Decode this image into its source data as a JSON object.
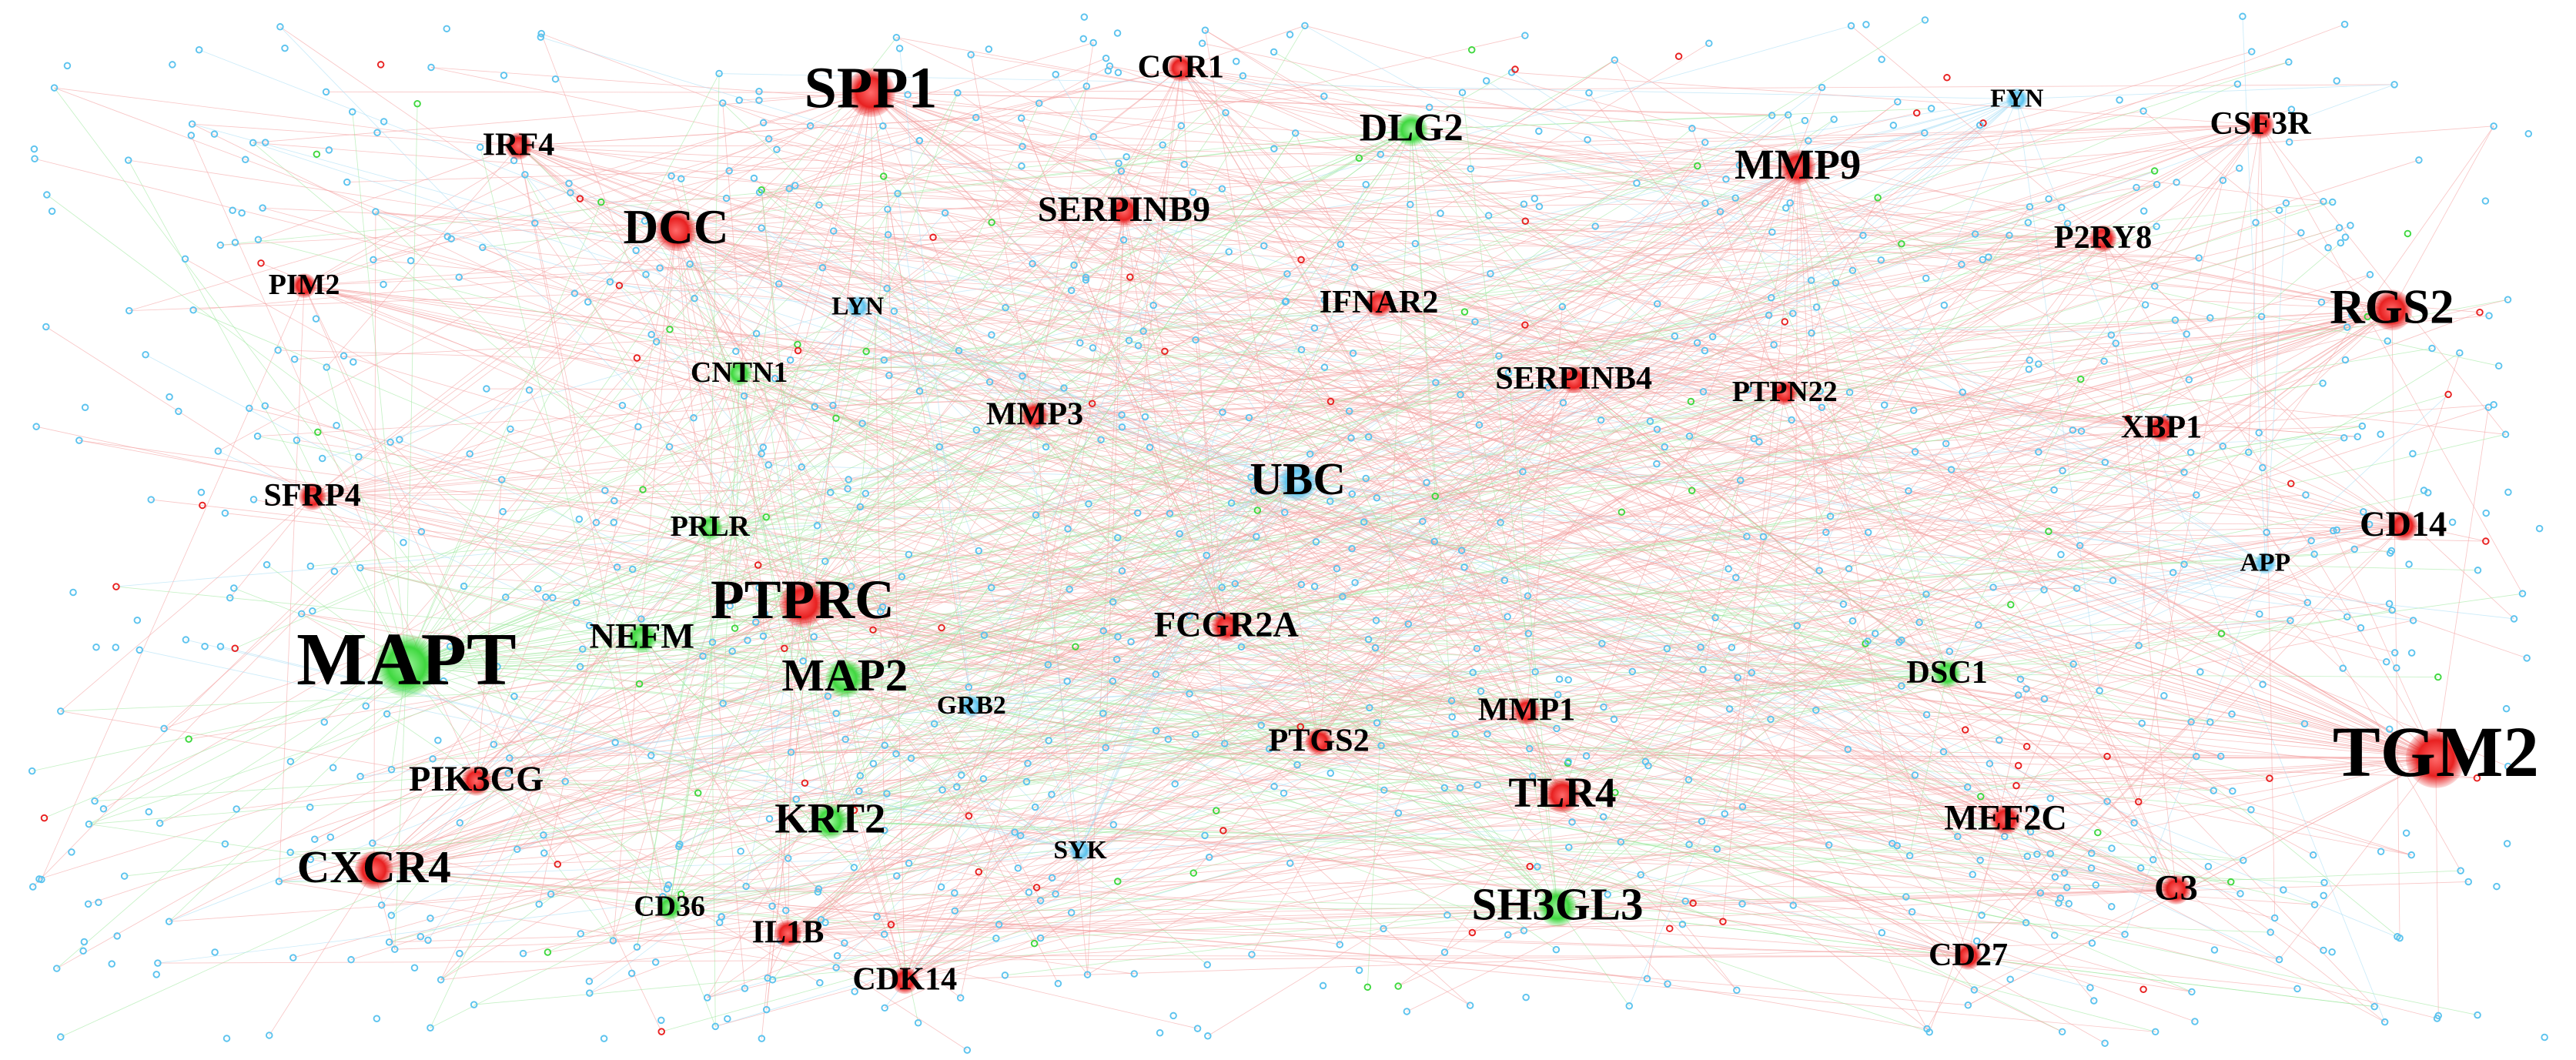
{
  "nodes": [
    {
      "label": "SPP1",
      "color": "red"
    },
    {
      "label": "CCR1",
      "color": "red"
    },
    {
      "label": "DLG2",
      "color": "green"
    },
    {
      "label": "FYN",
      "color": "blue"
    },
    {
      "label": "CSF3R",
      "color": "red"
    },
    {
      "label": "IRF4",
      "color": "red"
    },
    {
      "label": "MMP9",
      "color": "red"
    },
    {
      "label": "DCC",
      "color": "red"
    },
    {
      "label": "SERPINB9",
      "color": "red"
    },
    {
      "label": "P2RY8",
      "color": "red"
    },
    {
      "label": "PIM2",
      "color": "red"
    },
    {
      "label": "LYN",
      "color": "blue"
    },
    {
      "label": "IFNAR2",
      "color": "red"
    },
    {
      "label": "RGS2",
      "color": "red"
    },
    {
      "label": "CNTN1",
      "color": "green"
    },
    {
      "label": "SERPINB4",
      "color": "red"
    },
    {
      "label": "PTPN22",
      "color": "red"
    },
    {
      "label": "MMP3",
      "color": "red"
    },
    {
      "label": "XBP1",
      "color": "red"
    },
    {
      "label": "UBC",
      "color": "blue"
    },
    {
      "label": "SFRP4",
      "color": "red"
    },
    {
      "label": "PRLR",
      "color": "green"
    },
    {
      "label": "CD14",
      "color": "red"
    },
    {
      "label": "APP",
      "color": "blue"
    },
    {
      "label": "PTPRC",
      "color": "red"
    },
    {
      "label": "MAPT",
      "color": "green"
    },
    {
      "label": "NEFM",
      "color": "green"
    },
    {
      "label": "FCGR2A",
      "color": "red"
    },
    {
      "label": "MAP2",
      "color": "green"
    },
    {
      "label": "DSC1",
      "color": "green"
    },
    {
      "label": "GRB2",
      "color": "blue"
    },
    {
      "label": "MMP1",
      "color": "red"
    },
    {
      "label": "TGM2",
      "color": "red"
    },
    {
      "label": "PTGS2",
      "color": "red"
    },
    {
      "label": "PIK3CG",
      "color": "red"
    },
    {
      "label": "TLR4",
      "color": "red"
    },
    {
      "label": "KRT2",
      "color": "green"
    },
    {
      "label": "MEF2C",
      "color": "red"
    },
    {
      "label": "SYK",
      "color": "blue"
    },
    {
      "label": "CXCR4",
      "color": "red"
    },
    {
      "label": "C3",
      "color": "red"
    },
    {
      "label": "SH3GL3",
      "color": "green"
    },
    {
      "label": "CD36",
      "color": "green"
    },
    {
      "label": "IL1B",
      "color": "red"
    },
    {
      "label": "CD27",
      "color": "red"
    },
    {
      "label": "CDK14",
      "color": "red"
    }
  ]
}
